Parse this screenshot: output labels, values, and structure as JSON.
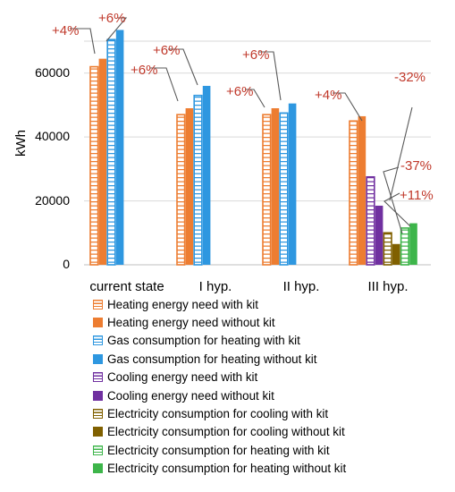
{
  "chart_data": {
    "type": "bar",
    "ylabel": "kWh",
    "ylim": [
      0,
      70000
    ],
    "yticks": [
      0,
      20000,
      40000,
      60000
    ],
    "grid": true,
    "categories": [
      "current state",
      "I hyp.",
      "II hyp.",
      "III hyp."
    ],
    "legend_position": "bottom",
    "series": [
      {
        "name": "Heating energy need with kit",
        "color": "#ED7D31",
        "style": "hatched",
        "values": [
          62000,
          47000,
          47000,
          45000
        ]
      },
      {
        "name": "Heating energy need without kit",
        "color": "#ED7D31",
        "style": "solid",
        "values": [
          64500,
          49000,
          49000,
          46500
        ]
      },
      {
        "name": "Gas consumption for heating with kit",
        "color": "#2E97E0",
        "style": "hatched",
        "values": [
          70500,
          53000,
          47500,
          null
        ]
      },
      {
        "name": "Gas consumption for heating without kit",
        "color": "#2E97E0",
        "style": "solid",
        "values": [
          73500,
          56000,
          50500,
          null
        ]
      },
      {
        "name": "Cooling energy need with kit",
        "color": "#7030A0",
        "style": "hatched",
        "values": [
          null,
          null,
          null,
          27500
        ]
      },
      {
        "name": "Cooling energy need without kit",
        "color": "#7030A0",
        "style": "solid",
        "values": [
          null,
          null,
          null,
          18500
        ]
      },
      {
        "name": "Electricity consumption for cooling with kit",
        "color": "#806000",
        "style": "hatched",
        "values": [
          null,
          null,
          null,
          10000
        ]
      },
      {
        "name": "Electricity consumption for cooling without kit",
        "color": "#806000",
        "style": "solid",
        "values": [
          null,
          null,
          null,
          6500
        ]
      },
      {
        "name": "Electricity consumption for heating with kit",
        "color": "#3DB54A",
        "style": "hatched",
        "values": [
          null,
          null,
          null,
          11500
        ]
      },
      {
        "name": "Electricity consumption for heating without kit",
        "color": "#3DB54A",
        "style": "solid",
        "values": [
          null,
          null,
          null,
          13000
        ]
      }
    ],
    "annotations": [
      "+4%",
      "+6%",
      "+6%",
      "+6%",
      "+6%",
      "+6%",
      "+4%",
      "-32%",
      "-37%",
      "+11%"
    ]
  }
}
